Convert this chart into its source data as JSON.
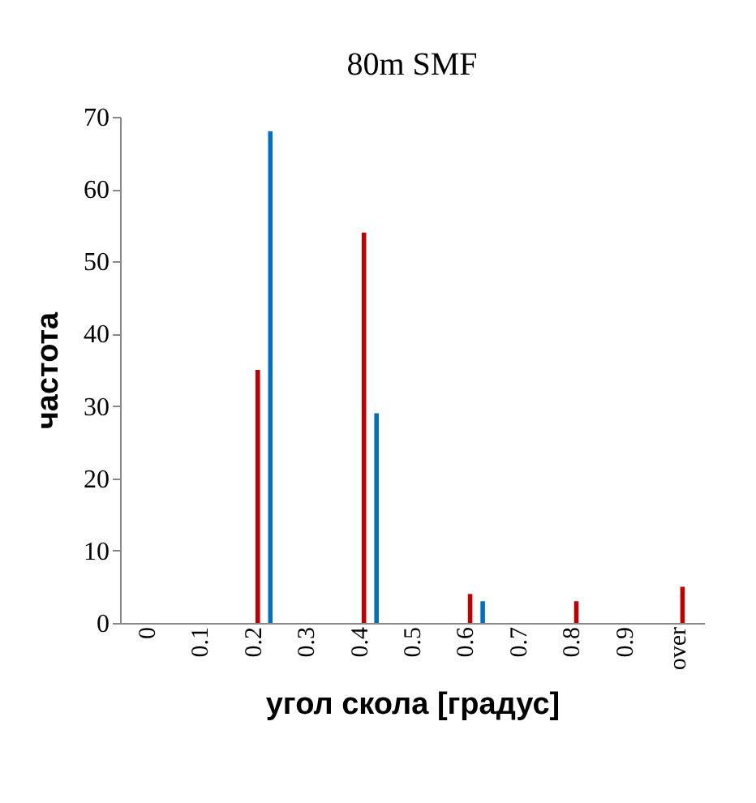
{
  "chart_data": {
    "type": "bar",
    "title": "80m SMF",
    "xlabel": "угол скола [градус]",
    "ylabel": "частота",
    "categories": [
      "0",
      "0.1",
      "0.2",
      "0.3",
      "0.4",
      "0.5",
      "0.6",
      "0.7",
      "0.8",
      "0.9",
      "over"
    ],
    "series": [
      {
        "color": "#c00000",
        "values": [
          0,
          0,
          35,
          0,
          54,
          0,
          4,
          0,
          3,
          0,
          5
        ]
      },
      {
        "color": "#0070c0",
        "values": [
          0,
          0,
          68,
          0,
          29,
          0,
          3,
          0,
          0,
          0,
          0
        ]
      }
    ],
    "ylim": [
      0,
      70
    ],
    "yticks": [
      0,
      10,
      20,
      30,
      40,
      50,
      60,
      70
    ],
    "grid": false
  }
}
